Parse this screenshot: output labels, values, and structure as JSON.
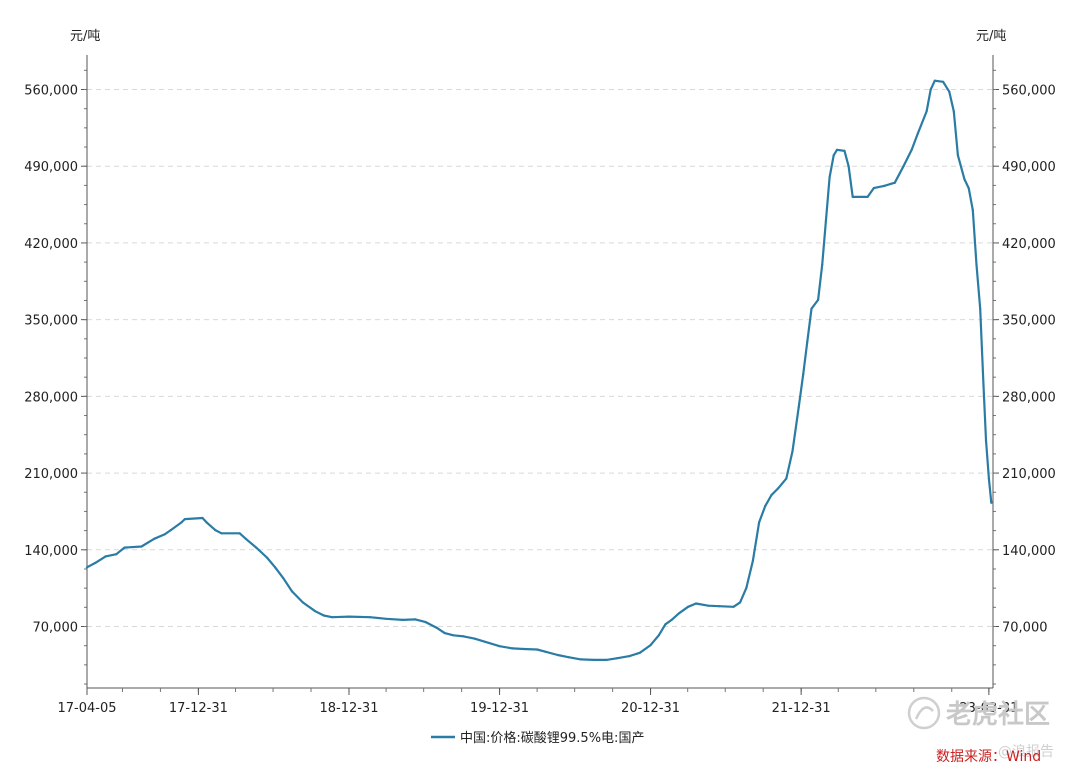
{
  "chart_data": {
    "type": "line",
    "title": "",
    "xlabel": "",
    "ylabel": "元/吨",
    "ylabel_right": "元/吨",
    "ylim": [
      0,
      600000
    ],
    "yticks": [
      70000,
      140000,
      210000,
      280000,
      350000,
      420000,
      490000,
      560000
    ],
    "ytick_labels": [
      "70,000",
      "140,000",
      "210,000",
      "280,000",
      "350,000",
      "420,000",
      "490,000",
      "560,000"
    ],
    "xlim": [
      "2017-04-05",
      "2023-04-10"
    ],
    "xticks": [
      "2017-04-05",
      "2017-12-31",
      "2018-12-31",
      "2019-12-31",
      "2020-12-31",
      "2021-12-31",
      "2023-03-31"
    ],
    "xtick_labels": [
      "17-04-05",
      "17-12-31",
      "18-12-31",
      "19-12-31",
      "20-12-31",
      "21-12-31",
      "23-03-31"
    ],
    "grid": true,
    "legend_position": "bottom-center",
    "color": "#2a7ca5",
    "series": [
      {
        "name": "中国:价格:碳酸锂99.5%电:国产",
        "points": [
          [
            "2017-04-05",
            124000
          ],
          [
            "2017-04-25",
            128000
          ],
          [
            "2017-05-20",
            134000
          ],
          [
            "2017-06-15",
            136000
          ],
          [
            "2017-07-05",
            142000
          ],
          [
            "2017-08-15",
            143000
          ],
          [
            "2017-09-15",
            150000
          ],
          [
            "2017-10-10",
            154000
          ],
          [
            "2017-10-25",
            158000
          ],
          [
            "2017-11-20",
            165000
          ],
          [
            "2017-11-28",
            168000
          ],
          [
            "2018-01-10",
            169000
          ],
          [
            "2018-01-20",
            165000
          ],
          [
            "2018-02-10",
            158000
          ],
          [
            "2018-02-25",
            155000
          ],
          [
            "2018-04-10",
            155000
          ],
          [
            "2018-04-25",
            150000
          ],
          [
            "2018-05-20",
            142000
          ],
          [
            "2018-06-15",
            133000
          ],
          [
            "2018-07-05",
            124000
          ],
          [
            "2018-07-25",
            114000
          ],
          [
            "2018-08-15",
            102000
          ],
          [
            "2018-09-10",
            92000
          ],
          [
            "2018-10-10",
            84000
          ],
          [
            "2018-10-31",
            80000
          ],
          [
            "2018-11-20",
            78500
          ],
          [
            "2018-12-31",
            79000
          ],
          [
            "2019-02-20",
            78500
          ],
          [
            "2019-03-31",
            77000
          ],
          [
            "2019-05-10",
            76000
          ],
          [
            "2019-06-10",
            76500
          ],
          [
            "2019-07-05",
            74000
          ],
          [
            "2019-07-31",
            69000
          ],
          [
            "2019-08-20",
            64000
          ],
          [
            "2019-09-10",
            62000
          ],
          [
            "2019-10-05",
            61000
          ],
          [
            "2019-10-31",
            59000
          ],
          [
            "2019-12-31",
            52000
          ],
          [
            "2020-01-31",
            50000
          ],
          [
            "2020-02-28",
            49500
          ],
          [
            "2020-03-31",
            49000
          ],
          [
            "2020-04-20",
            47000
          ],
          [
            "2020-05-20",
            44000
          ],
          [
            "2020-06-15",
            42000
          ],
          [
            "2020-07-15",
            40000
          ],
          [
            "2020-08-15",
            39500
          ],
          [
            "2020-09-15",
            39500
          ],
          [
            "2020-10-10",
            41000
          ],
          [
            "2020-11-10",
            43000
          ],
          [
            "2020-12-05",
            46000
          ],
          [
            "2020-12-31",
            53000
          ],
          [
            "2021-01-20",
            62000
          ],
          [
            "2021-02-05",
            72000
          ],
          [
            "2021-02-20",
            76000
          ],
          [
            "2021-03-10",
            82000
          ],
          [
            "2021-04-01",
            88000
          ],
          [
            "2021-04-20",
            91000
          ],
          [
            "2021-05-20",
            89000
          ],
          [
            "2021-06-15",
            88500
          ],
          [
            "2021-07-20",
            88000
          ],
          [
            "2021-08-05",
            92000
          ],
          [
            "2021-08-20",
            105000
          ],
          [
            "2021-09-05",
            130000
          ],
          [
            "2021-09-20",
            165000
          ],
          [
            "2021-10-05",
            180000
          ],
          [
            "2021-10-20",
            190000
          ],
          [
            "2021-11-05",
            196000
          ],
          [
            "2021-11-25",
            205000
          ],
          [
            "2021-12-10",
            230000
          ],
          [
            "2021-12-25",
            270000
          ],
          [
            "2022-01-05",
            300000
          ],
          [
            "2022-01-15",
            330000
          ],
          [
            "2022-01-25",
            360000
          ],
          [
            "2022-02-10",
            368000
          ],
          [
            "2022-02-20",
            400000
          ],
          [
            "2022-03-01",
            440000
          ],
          [
            "2022-03-10",
            480000
          ],
          [
            "2022-03-20",
            500000
          ],
          [
            "2022-03-28",
            505000
          ],
          [
            "2022-04-15",
            504000
          ],
          [
            "2022-04-25",
            490000
          ],
          [
            "2022-05-05",
            462000
          ],
          [
            "2022-06-10",
            462000
          ],
          [
            "2022-06-25",
            470000
          ],
          [
            "2022-07-20",
            472000
          ],
          [
            "2022-08-15",
            475000
          ],
          [
            "2022-09-05",
            490000
          ],
          [
            "2022-09-25",
            505000
          ],
          [
            "2022-10-10",
            520000
          ],
          [
            "2022-10-31",
            540000
          ],
          [
            "2022-11-10",
            560000
          ],
          [
            "2022-11-20",
            568000
          ],
          [
            "2022-12-10",
            567000
          ],
          [
            "2022-12-25",
            558000
          ],
          [
            "2023-01-05",
            540000
          ],
          [
            "2023-01-15",
            500000
          ],
          [
            "2023-01-31",
            478000
          ],
          [
            "2023-02-10",
            470000
          ],
          [
            "2023-02-20",
            450000
          ],
          [
            "2023-03-01",
            400000
          ],
          [
            "2023-03-10",
            360000
          ],
          [
            "2023-03-18",
            290000
          ],
          [
            "2023-03-24",
            240000
          ],
          [
            "2023-03-31",
            205000
          ],
          [
            "2023-04-06",
            183000
          ]
        ]
      }
    ]
  },
  "footer": {
    "source_label": "数据来源：Wind",
    "watermark_main": "老虎社区",
    "watermark_sub": "@浪报告"
  }
}
